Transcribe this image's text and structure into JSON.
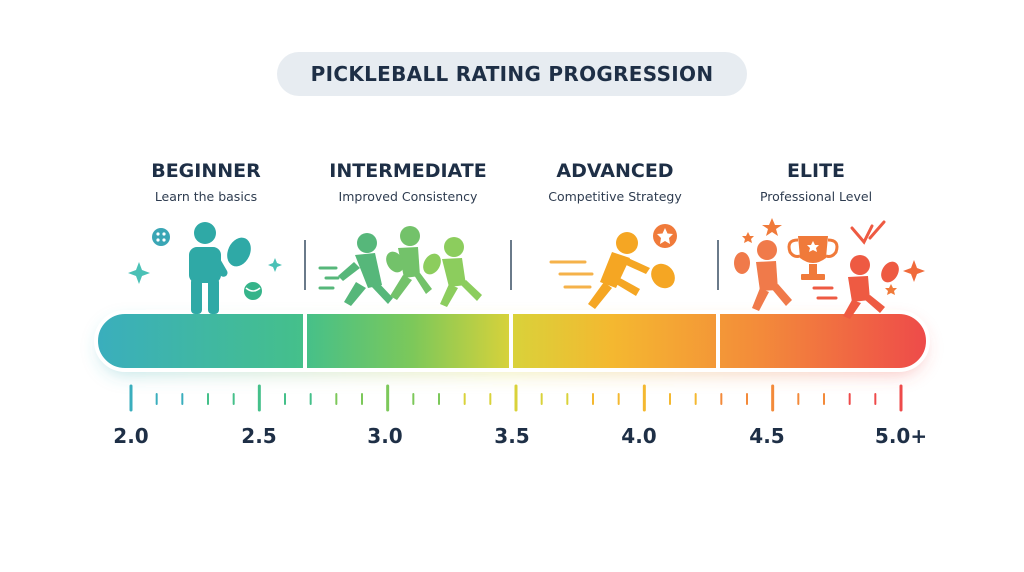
{
  "title": "PICKLEBALL RATING PROGRESSION",
  "levels": [
    {
      "name": "BEGINNER",
      "subtitle": "Learn the basics",
      "color": "#3db5b0"
    },
    {
      "name": "INTERMEDIATE",
      "subtitle": "Improved Consistency",
      "color": "#7cc85a"
    },
    {
      "name": "ADVANCED",
      "subtitle": "Competitive Strategy",
      "color": "#f4a623"
    },
    {
      "name": "ELITE",
      "subtitle": "Professional Level",
      "color": "#f06040"
    }
  ],
  "scale": {
    "labels": [
      "2.0",
      "2.5",
      "3.0",
      "3.5",
      "4.0",
      "4.5",
      "5.0+"
    ]
  },
  "icons": [
    "beginner-player-icon",
    "intermediate-players-icon",
    "advanced-player-icon",
    "elite-players-icon",
    "trophy-icon",
    "star-icon",
    "sparkle-icon",
    "ball-icon"
  ]
}
